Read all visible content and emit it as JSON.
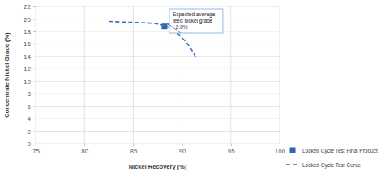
{
  "chart_data": {
    "type": "line",
    "x_label": "Nickel Recovery (%)",
    "y_label": "Concentrate Nickel Grade (%)",
    "xlim": [
      75,
      100
    ],
    "xticks": [
      75,
      80,
      85,
      90,
      95,
      100
    ],
    "ylim": [
      0,
      22
    ],
    "yticks": [
      0,
      2,
      4,
      6,
      8,
      10,
      12,
      14,
      16,
      18,
      20,
      22
    ],
    "grid": true,
    "legend": "right",
    "series": [
      {
        "name": "Locked Cycle Test Final Product",
        "type": "scatter",
        "marker": "square",
        "color": "#2f64b0",
        "x": [
          88.2
        ],
        "values": [
          18.8
        ]
      },
      {
        "name": "Locked Cycle Test Curve",
        "type": "line",
        "line_style": "dashed",
        "color": "#3a6fbf",
        "x": [
          82.5,
          84,
          86,
          87.5,
          88.2,
          89,
          90,
          91,
          91.5
        ],
        "values": [
          19.6,
          19.5,
          19.4,
          19.2,
          18.9,
          18.3,
          17.0,
          15.0,
          13.6
        ]
      }
    ],
    "annotations": [
      {
        "text": [
          "Expected average",
          "feed nickel grade",
          "~2.0%"
        ],
        "x": 88.2,
        "y": 18.8
      }
    ]
  }
}
